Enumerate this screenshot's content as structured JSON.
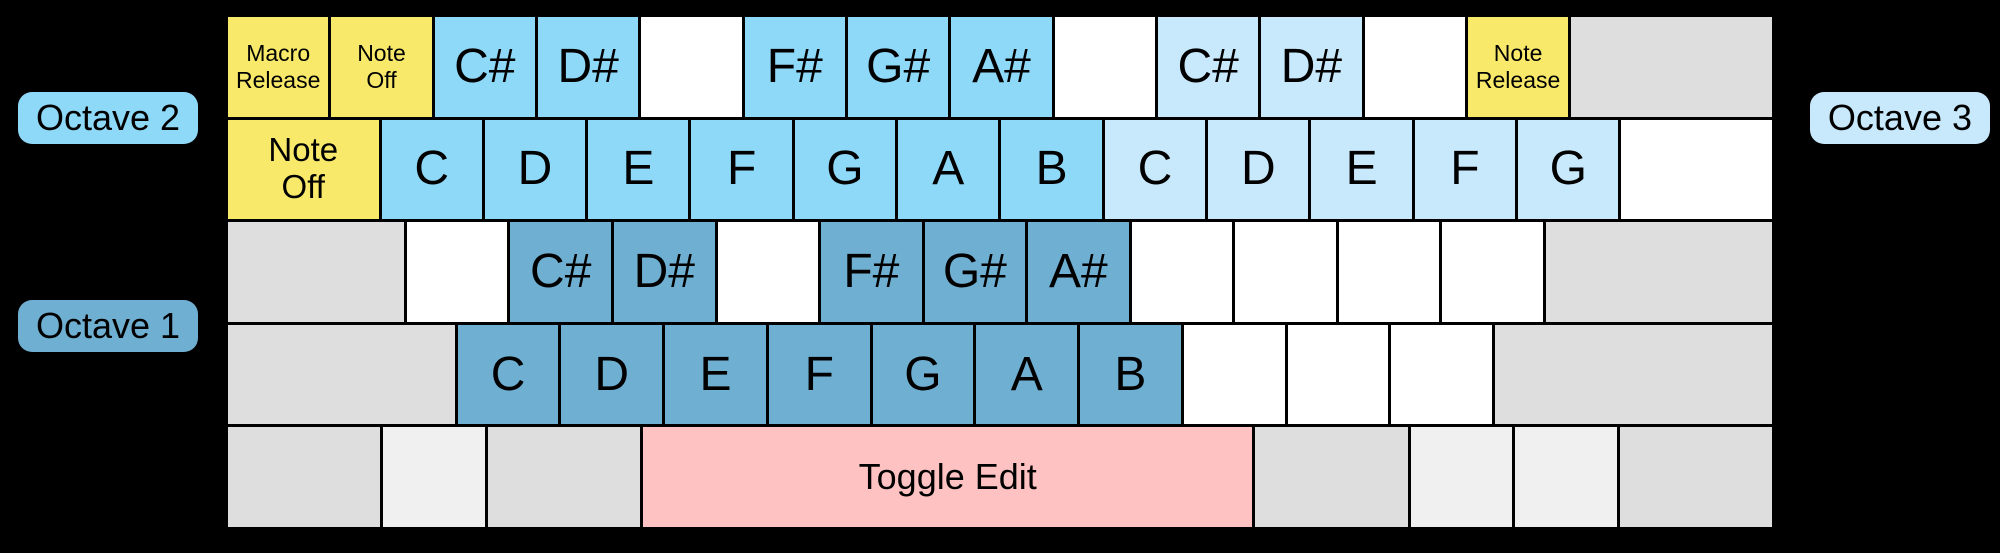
{
  "colors": {
    "background": "#000000",
    "text": "#000000",
    "octave1": "#6FAFD2",
    "octave2": "#8ED8F8",
    "octave3": "#C8E9FB",
    "function": "#F8E96A",
    "edit": "#FFC2C2",
    "mod": "#DEDEDE",
    "modLight": "#F0F0F0",
    "blank": "#FFFFFF"
  },
  "legend": {
    "octave2": "Octave 2",
    "octave1": "Octave 1",
    "octave3": "Octave 3"
  },
  "keyboard": {
    "rows": [
      {
        "keys": [
          {
            "name": "macro-release-key",
            "lines": [
              "Macro",
              "Release"
            ],
            "color": "function",
            "size": "xs",
            "u": 1
          },
          {
            "name": "note-off-key",
            "lines": [
              "Note",
              "Off"
            ],
            "color": "function",
            "size": "xs",
            "u": 1
          },
          {
            "name": "note-csharp2-key",
            "lines": [
              "C#"
            ],
            "color": "octave2",
            "size": "lg",
            "u": 1
          },
          {
            "name": "note-dsharp2-key",
            "lines": [
              "D#"
            ],
            "color": "octave2",
            "size": "lg",
            "u": 1
          },
          {
            "name": "blank-key",
            "lines": [],
            "color": "blank",
            "size": "lg",
            "u": 1
          },
          {
            "name": "note-fsharp2-key",
            "lines": [
              "F#"
            ],
            "color": "octave2",
            "size": "lg",
            "u": 1
          },
          {
            "name": "note-gsharp2-key",
            "lines": [
              "G#"
            ],
            "color": "octave2",
            "size": "lg",
            "u": 1
          },
          {
            "name": "note-asharp2-key",
            "lines": [
              "A#"
            ],
            "color": "octave2",
            "size": "lg",
            "u": 1
          },
          {
            "name": "blank-key",
            "lines": [],
            "color": "blank",
            "size": "lg",
            "u": 1
          },
          {
            "name": "note-csharp3-key",
            "lines": [
              "C#"
            ],
            "color": "octave3",
            "size": "lg",
            "u": 1
          },
          {
            "name": "note-dsharp3-key",
            "lines": [
              "D#"
            ],
            "color": "octave3",
            "size": "lg",
            "u": 1
          },
          {
            "name": "blank-key",
            "lines": [],
            "color": "blank",
            "size": "lg",
            "u": 1
          },
          {
            "name": "note-release-key",
            "lines": [
              "Note",
              "Release"
            ],
            "color": "function",
            "size": "xs",
            "u": 1
          },
          {
            "name": "backspace-key",
            "lines": [],
            "color": "mod",
            "size": "lg",
            "u": 2
          }
        ]
      },
      {
        "keys": [
          {
            "name": "note-off-key",
            "lines": [
              "Note",
              "Off"
            ],
            "color": "function",
            "size": "sm",
            "u": 1.5
          },
          {
            "name": "note-c2-key",
            "lines": [
              "C"
            ],
            "color": "octave2",
            "size": "lg",
            "u": 1
          },
          {
            "name": "note-d2-key",
            "lines": [
              "D"
            ],
            "color": "octave2",
            "size": "lg",
            "u": 1
          },
          {
            "name": "note-e2-key",
            "lines": [
              "E"
            ],
            "color": "octave2",
            "size": "lg",
            "u": 1
          },
          {
            "name": "note-f2-key",
            "lines": [
              "F"
            ],
            "color": "octave2",
            "size": "lg",
            "u": 1
          },
          {
            "name": "note-g2-key",
            "lines": [
              "G"
            ],
            "color": "octave2",
            "size": "lg",
            "u": 1
          },
          {
            "name": "note-a2-key",
            "lines": [
              "A"
            ],
            "color": "octave2",
            "size": "lg",
            "u": 1
          },
          {
            "name": "note-b2-key",
            "lines": [
              "B"
            ],
            "color": "octave2",
            "size": "lg",
            "u": 1
          },
          {
            "name": "note-c3-key",
            "lines": [
              "C"
            ],
            "color": "octave3",
            "size": "lg",
            "u": 1
          },
          {
            "name": "note-d3-key",
            "lines": [
              "D"
            ],
            "color": "octave3",
            "size": "lg",
            "u": 1
          },
          {
            "name": "note-e3-key",
            "lines": [
              "E"
            ],
            "color": "octave3",
            "size": "lg",
            "u": 1
          },
          {
            "name": "note-f3-key",
            "lines": [
              "F"
            ],
            "color": "octave3",
            "size": "lg",
            "u": 1
          },
          {
            "name": "note-g3-key",
            "lines": [
              "G"
            ],
            "color": "octave3",
            "size": "lg",
            "u": 1
          },
          {
            "name": "blank-key",
            "lines": [],
            "color": "blank",
            "size": "lg",
            "u": 1.5
          }
        ]
      },
      {
        "keys": [
          {
            "name": "caps-lock-key",
            "lines": [],
            "color": "mod",
            "size": "lg",
            "u": 1.75
          },
          {
            "name": "blank-key",
            "lines": [],
            "color": "blank",
            "size": "lg",
            "u": 1
          },
          {
            "name": "note-csharp1-key",
            "lines": [
              "C#"
            ],
            "color": "octave1",
            "size": "lg",
            "u": 1
          },
          {
            "name": "note-dsharp1-key",
            "lines": [
              "D#"
            ],
            "color": "octave1",
            "size": "lg",
            "u": 1
          },
          {
            "name": "blank-key",
            "lines": [],
            "color": "blank",
            "size": "lg",
            "u": 1
          },
          {
            "name": "note-fsharp1-key",
            "lines": [
              "F#"
            ],
            "color": "octave1",
            "size": "lg",
            "u": 1
          },
          {
            "name": "note-gsharp1-key",
            "lines": [
              "G#"
            ],
            "color": "octave1",
            "size": "lg",
            "u": 1
          },
          {
            "name": "note-asharp1-key",
            "lines": [
              "A#"
            ],
            "color": "octave1",
            "size": "lg",
            "u": 1
          },
          {
            "name": "blank-key",
            "lines": [],
            "color": "blank",
            "size": "lg",
            "u": 1
          },
          {
            "name": "blank-key",
            "lines": [],
            "color": "blank",
            "size": "lg",
            "u": 1
          },
          {
            "name": "blank-key",
            "lines": [],
            "color": "blank",
            "size": "lg",
            "u": 1
          },
          {
            "name": "blank-key",
            "lines": [],
            "color": "blank",
            "size": "lg",
            "u": 1
          },
          {
            "name": "enter-key",
            "lines": [],
            "color": "mod",
            "size": "lg",
            "u": 2.25
          }
        ]
      },
      {
        "keys": [
          {
            "name": "left-shift-key",
            "lines": [],
            "color": "mod",
            "size": "lg",
            "u": 2.25
          },
          {
            "name": "note-c1-key",
            "lines": [
              "C"
            ],
            "color": "octave1",
            "size": "lg",
            "u": 1
          },
          {
            "name": "note-d1-key",
            "lines": [
              "D"
            ],
            "color": "octave1",
            "size": "lg",
            "u": 1
          },
          {
            "name": "note-e1-key",
            "lines": [
              "E"
            ],
            "color": "octave1",
            "size": "lg",
            "u": 1
          },
          {
            "name": "note-f1-key",
            "lines": [
              "F"
            ],
            "color": "octave1",
            "size": "lg",
            "u": 1
          },
          {
            "name": "note-g1-key",
            "lines": [
              "G"
            ],
            "color": "octave1",
            "size": "lg",
            "u": 1
          },
          {
            "name": "note-a1-key",
            "lines": [
              "A"
            ],
            "color": "octave1",
            "size": "lg",
            "u": 1
          },
          {
            "name": "note-b1-key",
            "lines": [
              "B"
            ],
            "color": "octave1",
            "size": "lg",
            "u": 1
          },
          {
            "name": "blank-key",
            "lines": [],
            "color": "blank",
            "size": "lg",
            "u": 1
          },
          {
            "name": "blank-key",
            "lines": [],
            "color": "blank",
            "size": "lg",
            "u": 1
          },
          {
            "name": "blank-key",
            "lines": [],
            "color": "blank",
            "size": "lg",
            "u": 1
          },
          {
            "name": "right-shift-key",
            "lines": [],
            "color": "mod",
            "size": "lg",
            "u": 2.75
          }
        ]
      },
      {
        "keys": [
          {
            "name": "left-ctrl-key",
            "lines": [],
            "color": "mod",
            "size": "lg",
            "u": 1.5
          },
          {
            "name": "left-win-key",
            "lines": [],
            "color": "modLight",
            "size": "lg",
            "u": 1
          },
          {
            "name": "left-alt-key",
            "lines": [],
            "color": "mod",
            "size": "lg",
            "u": 1.5
          },
          {
            "name": "toggle-edit-key",
            "lines": [
              "Toggle Edit"
            ],
            "color": "edit",
            "size": "md",
            "u": 6
          },
          {
            "name": "right-alt-key",
            "lines": [],
            "color": "mod",
            "size": "lg",
            "u": 1.5
          },
          {
            "name": "right-win-key",
            "lines": [],
            "color": "modLight",
            "size": "lg",
            "u": 1
          },
          {
            "name": "menu-key",
            "lines": [],
            "color": "modLight",
            "size": "lg",
            "u": 1
          },
          {
            "name": "right-ctrl-key",
            "lines": [],
            "color": "mod",
            "size": "lg",
            "u": 1.5
          }
        ]
      }
    ]
  }
}
